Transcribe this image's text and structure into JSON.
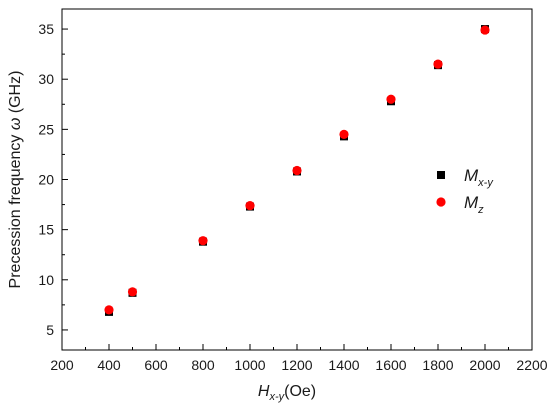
{
  "chart_data": {
    "type": "scatter",
    "xlim": [
      200,
      2200
    ],
    "ylim": [
      3,
      37
    ],
    "x_ticks": [
      200,
      400,
      600,
      800,
      1000,
      1200,
      1400,
      1600,
      1800,
      2000,
      2200
    ],
    "y_ticks": [
      5,
      10,
      15,
      20,
      25,
      30,
      35
    ],
    "xlabel": {
      "main": "H",
      "subscript": "x-y",
      "suffix": "(Oe)"
    },
    "ylabel": {
      "prefix": "Precession frequency ",
      "symbol": "ω",
      "suffix": " (GHz)"
    },
    "grid": false,
    "legend_position": "right",
    "series": [
      {
        "name": "M",
        "name_subscript": "x-y",
        "marker": "square",
        "color": "#000000",
        "points": [
          {
            "x": 400,
            "y": 6.8
          },
          {
            "x": 500,
            "y": 8.7
          },
          {
            "x": 800,
            "y": 13.8
          },
          {
            "x": 1000,
            "y": 17.3
          },
          {
            "x": 1200,
            "y": 20.8
          },
          {
            "x": 1400,
            "y": 24.3
          },
          {
            "x": 1600,
            "y": 27.8
          },
          {
            "x": 1800,
            "y": 31.4
          },
          {
            "x": 2000,
            "y": 35.0
          }
        ]
      },
      {
        "name": "M",
        "name_subscript": "z",
        "marker": "circle",
        "color": "#ff0000",
        "points": [
          {
            "x": 400,
            "y": 7.0
          },
          {
            "x": 500,
            "y": 8.8
          },
          {
            "x": 800,
            "y": 13.9
          },
          {
            "x": 1000,
            "y": 17.4
          },
          {
            "x": 1200,
            "y": 20.9
          },
          {
            "x": 1400,
            "y": 24.5
          },
          {
            "x": 1600,
            "y": 28.0
          },
          {
            "x": 1800,
            "y": 31.5
          },
          {
            "x": 2000,
            "y": 34.9
          }
        ]
      }
    ]
  }
}
